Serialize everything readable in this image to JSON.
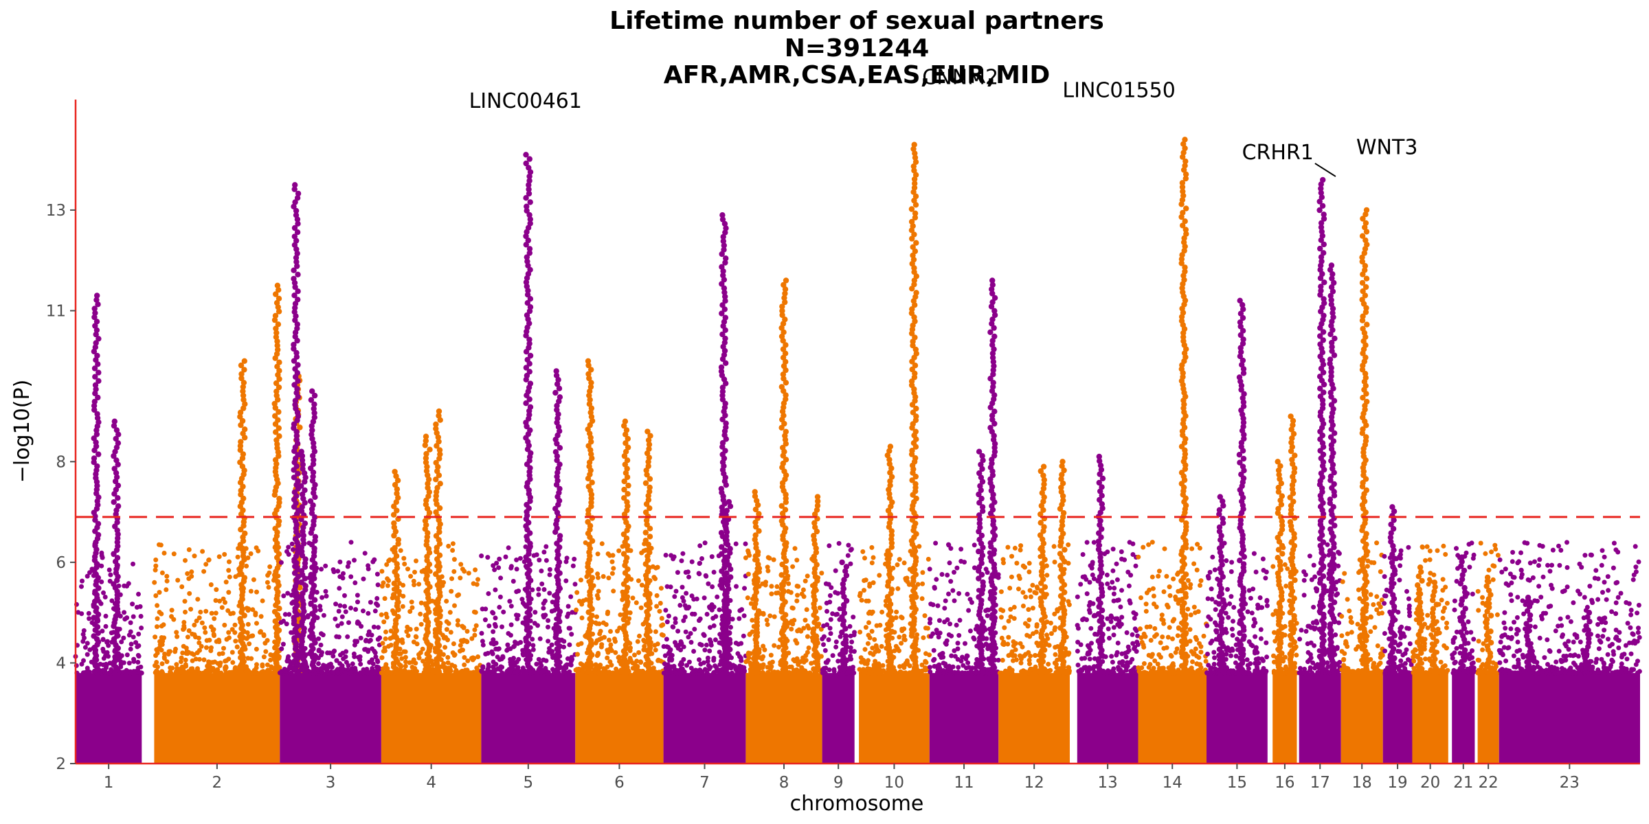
{
  "chart_data": {
    "type": "scatter",
    "subtype": "manhattan",
    "title_lines": [
      "Lifetime number of sexual partners",
      "N=391244",
      "AFR,AMR,CSA,EAS,EUR,MID"
    ],
    "xlabel": "chromosome",
    "ylabel": "−log10(P)",
    "ylim": [
      2,
      13.7
    ],
    "yticks": [
      2,
      4,
      6,
      8,
      11,
      13
    ],
    "threshold": 6.9,
    "colors": {
      "odd": "#8B008B",
      "even": "#EE7600",
      "threshold": "#E8251F",
      "axis": "#E8251F"
    },
    "chromosomes": [
      {
        "label": "1",
        "start": 0,
        "end": 90,
        "peaks": [
          [
            28,
            11.3
          ],
          [
            55,
            8.8
          ]
        ]
      },
      {
        "label": "2",
        "start": 107,
        "end": 278,
        "peaks": [
          [
            120,
            10.0
          ],
          [
            167,
            11.5
          ],
          [
            195,
            9.7
          ]
        ]
      },
      {
        "label": "3",
        "start": 278,
        "end": 416,
        "peaks": [
          [
            22,
            13.5
          ],
          [
            45,
            9.4
          ],
          [
            32,
            8.2
          ]
        ]
      },
      {
        "label": "4",
        "start": 416,
        "end": 552,
        "peaks": [
          [
            20,
            7.8
          ],
          [
            77,
            9.0
          ],
          [
            63,
            8.5
          ]
        ]
      },
      {
        "label": "5",
        "start": 552,
        "end": 680,
        "peaks": [
          [
            64,
            14.1
          ],
          [
            104,
            9.8
          ]
        ]
      },
      {
        "label": "6",
        "start": 680,
        "end": 800,
        "peaks": [
          [
            20,
            10.0
          ],
          [
            69,
            8.8
          ],
          [
            99,
            8.6
          ]
        ]
      },
      {
        "label": "7",
        "start": 800,
        "end": 912,
        "peaks": [
          [
            82,
            12.9
          ],
          [
            88,
            7.2
          ]
        ]
      },
      {
        "label": "8",
        "start": 912,
        "end": 1016,
        "peaks": [
          [
            52,
            11.6
          ],
          [
            15,
            7.4
          ],
          [
            95,
            7.3
          ]
        ]
      },
      {
        "label": "9",
        "start": 1016,
        "end": 1060,
        "peaks": [
          [
            30,
            6.0
          ]
        ]
      },
      {
        "label": "10",
        "start": 1066,
        "end": 1162,
        "peaks": [
          [
            75,
            14.3
          ],
          [
            42,
            8.3
          ]
        ]
      },
      {
        "label": "11",
        "start": 1162,
        "end": 1256,
        "peaks": [
          [
            86,
            11.6
          ],
          [
            70,
            8.2
          ]
        ]
      },
      {
        "label": "12",
        "start": 1256,
        "end": 1353,
        "peaks": [
          [
            60,
            7.9
          ],
          [
            87,
            8.0
          ]
        ]
      },
      {
        "label": "13",
        "start": 1363,
        "end": 1446,
        "peaks": [
          [
            32,
            8.1
          ]
        ]
      },
      {
        "label": "14",
        "start": 1446,
        "end": 1539,
        "peaks": [
          [
            62,
            14.4
          ]
        ]
      },
      {
        "label": "15",
        "start": 1539,
        "end": 1622,
        "peaks": [
          [
            48,
            11.2
          ],
          [
            20,
            7.3
          ]
        ]
      },
      {
        "label": "16",
        "start": 1629,
        "end": 1662,
        "peaks": [
          [
            10,
            8.0
          ],
          [
            27,
            8.9
          ]
        ]
      },
      {
        "label": "17",
        "start": 1665,
        "end": 1722,
        "peaks": [
          [
            31,
            13.6
          ],
          [
            45,
            11.9
          ]
        ]
      },
      {
        "label": "18",
        "start": 1722,
        "end": 1779,
        "peaks": [
          [
            32,
            13.0
          ]
        ]
      },
      {
        "label": "19",
        "start": 1779,
        "end": 1819,
        "peaks": [
          [
            13,
            7.1
          ]
        ]
      },
      {
        "label": "20",
        "start": 1819,
        "end": 1868,
        "peaks": [
          [
            10,
            5.9
          ],
          [
            30,
            5.6
          ]
        ]
      },
      {
        "label": "21",
        "start": 1873,
        "end": 1904,
        "peaks": [
          [
            15,
            6.1
          ]
        ]
      },
      {
        "label": "22",
        "start": 1908,
        "end": 1937,
        "peaks": [
          [
            15,
            5.7
          ]
        ]
      },
      {
        "label": "23",
        "start": 1937,
        "end": 2129,
        "peaks": [
          [
            40,
            5.3
          ],
          [
            120,
            5.0
          ]
        ]
      }
    ],
    "gene_labels": [
      {
        "text": "LINC00461",
        "x": 616,
        "y": 14.05
      },
      {
        "text": "CNNM2",
        "x": 1141,
        "y": 14.3
      },
      {
        "text": "LINC01550",
        "x": 1508,
        "y": 14.4
      },
      {
        "text": "CRHR1",
        "x": 1696,
        "y": 13.6
      },
      {
        "text": "WNT3",
        "x": 1710,
        "y": 13.4
      }
    ]
  }
}
